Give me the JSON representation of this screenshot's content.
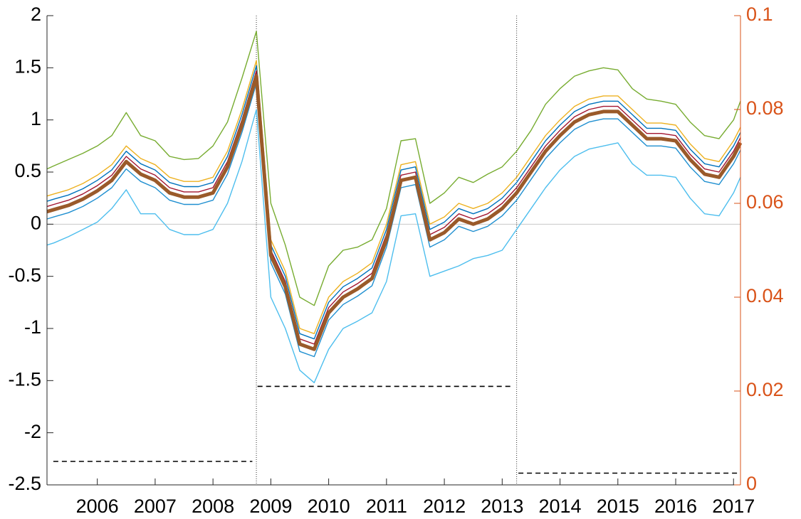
{
  "chart_data": {
    "type": "line",
    "x": [
      2005.13,
      2005.25,
      2005.5,
      2005.75,
      2006,
      2006.25,
      2006.5,
      2006.75,
      2007,
      2007.25,
      2007.5,
      2007.75,
      2008,
      2008.25,
      2008.5,
      2008.75,
      2009,
      2009.25,
      2009.5,
      2009.75,
      2010,
      2010.25,
      2010.5,
      2010.75,
      2011,
      2011.25,
      2011.5,
      2011.75,
      2012,
      2012.25,
      2012.5,
      2012.75,
      2013,
      2013.25,
      2013.5,
      2013.75,
      2014,
      2014.25,
      2014.5,
      2014.75,
      2015,
      2015.25,
      2015.5,
      2015.75,
      2016,
      2016.25,
      2016.5,
      2016.75,
      2017,
      2017.12
    ],
    "series": [
      {
        "color": "#77ac30",
        "values": [
          0.53,
          0.56,
          0.62,
          0.68,
          0.75,
          0.85,
          1.07,
          0.85,
          0.8,
          0.65,
          0.62,
          0.63,
          0.75,
          0.98,
          1.4,
          1.85,
          0.2,
          -0.2,
          -0.7,
          -0.78,
          -0.4,
          -0.25,
          -0.22,
          -0.15,
          0.15,
          0.8,
          0.82,
          0.2,
          0.3,
          0.45,
          0.4,
          0.48,
          0.55,
          0.7,
          0.9,
          1.15,
          1.3,
          1.42,
          1.47,
          1.5,
          1.48,
          1.3,
          1.2,
          1.18,
          1.15,
          0.98,
          0.85,
          0.82,
          1.0,
          1.18
        ]
      },
      {
        "color": "#4dbeee",
        "values": [
          -0.2,
          -0.18,
          -0.12,
          -0.05,
          0.02,
          0.15,
          0.33,
          0.1,
          0.1,
          -0.05,
          -0.1,
          -0.1,
          -0.05,
          0.2,
          0.6,
          1.1,
          -0.7,
          -1.0,
          -1.4,
          -1.52,
          -1.2,
          -1.0,
          -0.93,
          -0.85,
          -0.55,
          0.08,
          0.1,
          -0.5,
          -0.45,
          -0.4,
          -0.33,
          -0.3,
          -0.25,
          -0.05,
          0.15,
          0.35,
          0.52,
          0.65,
          0.72,
          0.75,
          0.78,
          0.58,
          0.47,
          0.47,
          0.45,
          0.25,
          0.1,
          0.08,
          0.3,
          0.45
        ]
      },
      {
        "color": "#edb120",
        "values": [
          0.27,
          0.29,
          0.33,
          0.39,
          0.47,
          0.57,
          0.75,
          0.63,
          0.57,
          0.45,
          0.41,
          0.41,
          0.45,
          0.7,
          1.1,
          1.57,
          -0.15,
          -0.45,
          -1.0,
          -1.05,
          -0.7,
          -0.55,
          -0.47,
          -0.37,
          0.0,
          0.57,
          0.6,
          0.0,
          0.07,
          0.2,
          0.15,
          0.2,
          0.3,
          0.45,
          0.65,
          0.85,
          1.0,
          1.13,
          1.2,
          1.23,
          1.23,
          1.1,
          0.97,
          0.97,
          0.95,
          0.77,
          0.63,
          0.6,
          0.8,
          0.93
        ]
      },
      {
        "color": "#0072bd",
        "values": [
          0.22,
          0.24,
          0.28,
          0.34,
          0.42,
          0.52,
          0.7,
          0.58,
          0.52,
          0.4,
          0.36,
          0.36,
          0.4,
          0.65,
          1.05,
          1.52,
          -0.2,
          -0.5,
          -1.05,
          -1.1,
          -0.75,
          -0.6,
          -0.52,
          -0.42,
          -0.05,
          0.52,
          0.55,
          -0.05,
          0.02,
          0.15,
          0.1,
          0.15,
          0.25,
          0.4,
          0.6,
          0.8,
          0.95,
          1.08,
          1.15,
          1.18,
          1.18,
          1.05,
          0.92,
          0.92,
          0.9,
          0.72,
          0.58,
          0.55,
          0.75,
          0.88
        ]
      },
      {
        "color": "#a2142f",
        "values": [
          0.17,
          0.19,
          0.23,
          0.29,
          0.37,
          0.47,
          0.65,
          0.53,
          0.47,
          0.35,
          0.31,
          0.31,
          0.35,
          0.6,
          1.0,
          1.47,
          -0.25,
          -0.55,
          -1.1,
          -1.15,
          -0.8,
          -0.65,
          -0.57,
          -0.47,
          -0.1,
          0.47,
          0.5,
          -0.1,
          -0.03,
          0.1,
          0.05,
          0.1,
          0.2,
          0.35,
          0.55,
          0.75,
          0.9,
          1.03,
          1.1,
          1.13,
          1.13,
          1.0,
          0.87,
          0.87,
          0.85,
          0.67,
          0.53,
          0.5,
          0.7,
          0.83
        ]
      },
      {
        "color": "#1f8fd0",
        "values": [
          0.05,
          0.07,
          0.11,
          0.17,
          0.25,
          0.35,
          0.53,
          0.41,
          0.35,
          0.23,
          0.19,
          0.19,
          0.23,
          0.48,
          0.88,
          1.35,
          -0.37,
          -0.67,
          -1.22,
          -1.27,
          -0.92,
          -0.77,
          -0.69,
          -0.59,
          -0.22,
          0.35,
          0.38,
          -0.22,
          -0.15,
          -0.02,
          -0.07,
          -0.02,
          0.08,
          0.23,
          0.43,
          0.63,
          0.78,
          0.91,
          0.98,
          1.01,
          1.01,
          0.88,
          0.75,
          0.75,
          0.73,
          0.55,
          0.41,
          0.38,
          0.58,
          0.71
        ]
      },
      {
        "color": "#9a5a2a",
        "width": 5,
        "values": [
          0.12,
          0.14,
          0.18,
          0.24,
          0.32,
          0.42,
          0.6,
          0.48,
          0.42,
          0.3,
          0.26,
          0.26,
          0.3,
          0.55,
          0.95,
          1.42,
          -0.3,
          -0.6,
          -1.15,
          -1.2,
          -0.85,
          -0.7,
          -0.62,
          -0.52,
          -0.15,
          0.42,
          0.45,
          -0.15,
          -0.08,
          0.05,
          0.0,
          0.05,
          0.15,
          0.3,
          0.5,
          0.7,
          0.85,
          0.98,
          1.05,
          1.08,
          1.08,
          0.95,
          0.82,
          0.82,
          0.8,
          0.62,
          0.48,
          0.45,
          0.65,
          0.78
        ]
      }
    ],
    "dashed_series": [
      {
        "axis": "y2",
        "color": "#000000",
        "x": [
          2005.24,
          2008.68
        ],
        "values": [
          0.005,
          0.005
        ]
      },
      {
        "axis": "y2",
        "color": "#000000",
        "x": [
          2008.77,
          2013.18
        ],
        "values": [
          0.021,
          0.021
        ]
      },
      {
        "axis": "y2",
        "color": "#000000",
        "x": [
          2013.28,
          2017.12
        ],
        "values": [
          0.0025,
          0.0025
        ]
      }
    ],
    "vlines": [
      2008.75,
      2013.25
    ],
    "hline": 0,
    "xlim": [
      2005.13,
      2017.12
    ],
    "xticks": [
      2006,
      2007,
      2008,
      2009,
      2010,
      2011,
      2012,
      2013,
      2014,
      2015,
      2016,
      2017
    ],
    "ylim": [
      -2.5,
      2
    ],
    "yticks": [
      -2.5,
      -2,
      -1.5,
      -1,
      -0.5,
      0,
      0.5,
      1,
      1.5,
      2
    ],
    "y2lim": [
      0,
      0.1
    ],
    "y2ticks": [
      0,
      0.02,
      0.04,
      0.06,
      0.08,
      0.1
    ],
    "y2color": "#d95319"
  }
}
